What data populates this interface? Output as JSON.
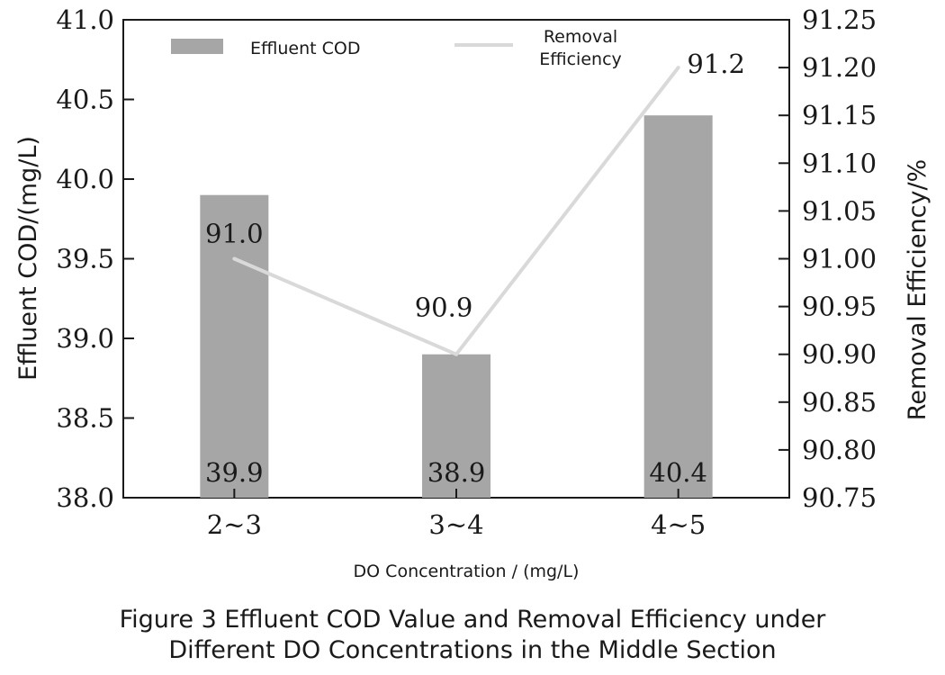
{
  "chart_data": {
    "type": "bar",
    "categories": [
      "2~3",
      "3~4",
      "4~5"
    ],
    "series": [
      {
        "name": "Effluent COD",
        "type": "bar",
        "axis": "left",
        "values": [
          39.9,
          38.9,
          40.4
        ],
        "labels": [
          "39.9",
          "38.9",
          "40.4"
        ],
        "color": "#a6a6a6"
      },
      {
        "name": "Removal Efficiency",
        "type": "line",
        "axis": "right",
        "values": [
          91.0,
          90.9,
          91.2
        ],
        "labels": [
          "91.0",
          "90.9",
          "91.2"
        ],
        "color": "#d9d9d9"
      }
    ],
    "xlabel": "DO Concentration / (mg/L)",
    "ylabel": "Effluent COD/(mg/L)",
    "y2label": "Removal Efficiency/%",
    "ylim": [
      38.0,
      41.0
    ],
    "y2lim": [
      90.75,
      91.25
    ],
    "yticks": [
      "38.0",
      "38.5",
      "39.0",
      "39.5",
      "40.0",
      "40.5",
      "41.0"
    ],
    "y2ticks": [
      "90.75",
      "90.80",
      "90.85",
      "90.90",
      "90.95",
      "91.00",
      "91.05",
      "91.10",
      "91.15",
      "91.20",
      "91.25"
    ],
    "grid": false,
    "legend": {
      "position": "top",
      "entries": [
        "Effluent COD",
        "Removal\nEfficiency"
      ]
    }
  },
  "caption": {
    "line1": "Figure 3 Effluent COD Value and Removal Efficiency under",
    "line2": "Different DO Concentrations in the Middle Section"
  }
}
